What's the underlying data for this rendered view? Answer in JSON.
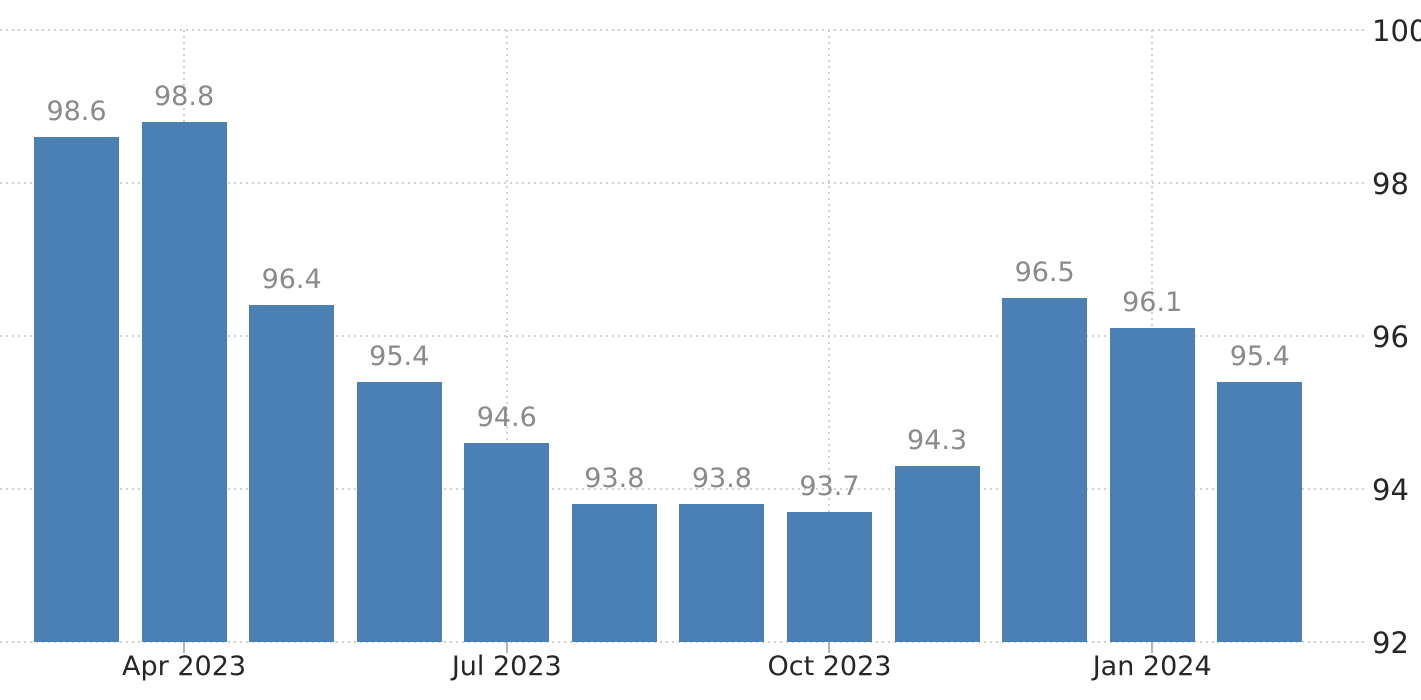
{
  "chart_data": {
    "type": "bar",
    "values": [
      98.6,
      98.8,
      96.4,
      95.4,
      94.6,
      93.8,
      93.8,
      93.7,
      94.3,
      96.5,
      96.1,
      95.4
    ],
    "bar_value_labels": [
      "98.6",
      "98.8",
      "96.4",
      "95.4",
      "94.6",
      "93.8",
      "93.8",
      "93.7",
      "94.3",
      "96.5",
      "96.1",
      "95.4"
    ],
    "x_ticks": [
      {
        "bar_index": 1,
        "label": "Apr 2023"
      },
      {
        "bar_index": 4,
        "label": "Jul 2023"
      },
      {
        "bar_index": 7,
        "label": "Oct 2023"
      },
      {
        "bar_index": 10,
        "label": "Jan 2024"
      }
    ],
    "y_tick_labels": [
      "100",
      "98",
      "96",
      "94",
      "92"
    ],
    "y_tick_values": [
      100,
      98,
      96,
      94,
      92
    ],
    "ylim": [
      92,
      100
    ],
    "grid": "dotted",
    "y_axis_side": "right",
    "legend_position": "none"
  },
  "colors": {
    "bar": "#4A80B4",
    "value_label": "#8a8a8a",
    "axis_label": "#262626",
    "gridline": "#d2d2d2",
    "tick_mark": "#b5b5b5",
    "background": "#ffffff"
  }
}
